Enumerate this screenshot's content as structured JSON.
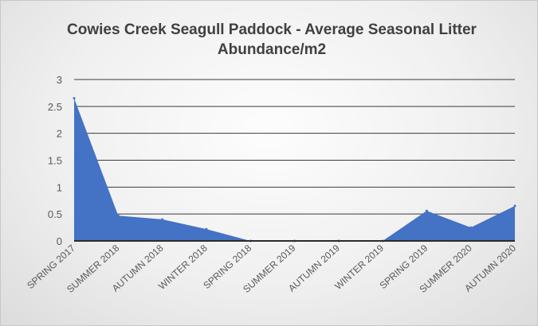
{
  "chart_data": {
    "type": "area",
    "title_line1": "Cowies Creek Seagull Paddock  - Average Seasonal Litter",
    "title_line2": "Abundance/m2",
    "categories": [
      "SPRING 2017",
      "SUMMER 2018",
      "AUTUMN 2018",
      "WINTER 2018",
      "SPRING 2018",
      "SUMMER 2019",
      "AUTUMN 2019",
      "WINTER 2019",
      "SPRING 2019",
      "SUMMER 2020",
      "AUTUMN 2020"
    ],
    "values": [
      2.65,
      0.47,
      0.4,
      0.22,
      0.0,
      0.0,
      0.0,
      0.0,
      0.56,
      0.25,
      0.65
    ],
    "yticks": [
      "0",
      "0.5",
      "1",
      "1.5",
      "2",
      "2.5",
      "3"
    ],
    "ylim": [
      0,
      3
    ],
    "grid": true,
    "legend": "none",
    "fill_color": "#4472C4",
    "grid_color": "#3a3a3a",
    "axis_color": "#2b2b2b"
  }
}
